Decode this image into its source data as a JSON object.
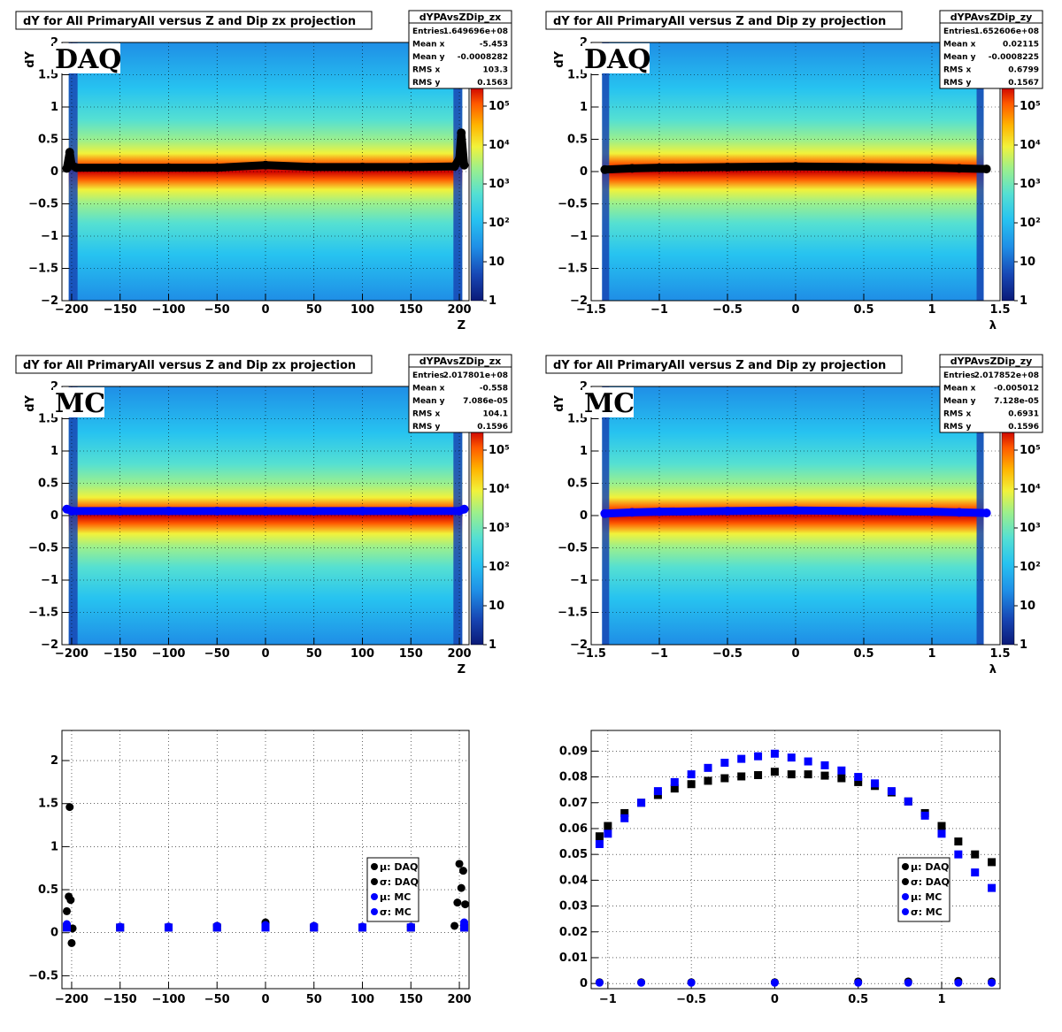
{
  "colors": {
    "daq": "#000000",
    "mc": "#0000ff",
    "palette": [
      "#0b1a78",
      "#1746b4",
      "#1f8ee6",
      "#27c3f0",
      "#55e0d2",
      "#9ef08a",
      "#f2f23a",
      "#ffb400",
      "#ff5a00",
      "#cc0000"
    ]
  },
  "panels": [
    {
      "id": "daq-zx",
      "tag": "DAQ",
      "title": "dY for All PrimaryAll versus Z and Dip zx projection",
      "stats": {
        "name": "dYPAvsZDip_zx",
        "rows": [
          {
            "label": "Entries",
            "value": "1.649696e+08"
          },
          {
            "label": "Mean x",
            "value": "-5.453"
          },
          {
            "label": "Mean y",
            "value": "-0.0008282"
          },
          {
            "label": "RMS x",
            "value": "103.3"
          },
          {
            "label": "RMS y",
            "value": "0.1563"
          }
        ]
      },
      "ylabel": "dY",
      "xlabel": "Z",
      "xticks": [
        "−200",
        "−150",
        "−100",
        "−50",
        "0",
        "50",
        "100",
        "150",
        "200"
      ],
      "yticks": [
        "−2",
        "−1.5",
        "−1",
        "−0.5",
        "0",
        "0.5",
        "1",
        "1.5",
        "2"
      ],
      "zticks": [
        "1",
        "10",
        "10²",
        "10³",
        "10⁴",
        "10⁵"
      ]
    },
    {
      "id": "daq-zy",
      "tag": "DAQ",
      "title": "dY for All PrimaryAll versus Z and Dip zy projection",
      "stats": {
        "name": "dYPAvsZDip_zy",
        "rows": [
          {
            "label": "Entries",
            "value": "1.652606e+08"
          },
          {
            "label": "Mean x",
            "value": "0.02115"
          },
          {
            "label": "Mean y",
            "value": "-0.0008225"
          },
          {
            "label": "RMS x",
            "value": "0.6799"
          },
          {
            "label": "RMS y",
            "value": "0.1567"
          }
        ]
      },
      "ylabel": "dY",
      "xlabel": "λ",
      "xticks": [
        "−1.5",
        "−1",
        "−0.5",
        "0",
        "0.5",
        "1",
        "1.5"
      ],
      "yticks": [
        "−2",
        "−1.5",
        "−1",
        "−0.5",
        "0",
        "0.5",
        "1",
        "1.5",
        "2"
      ],
      "zticks": [
        "1",
        "10",
        "10²",
        "10³",
        "10⁴",
        "10⁵"
      ]
    },
    {
      "id": "mc-zx",
      "tag": "MC",
      "title": "dY for All PrimaryAll versus Z and Dip zx projection",
      "stats": {
        "name": "dYPAvsZDip_zx",
        "rows": [
          {
            "label": "Entries",
            "value": "2.017801e+08"
          },
          {
            "label": "Mean x",
            "value": "-0.558"
          },
          {
            "label": "Mean y",
            "value": "7.086e-05"
          },
          {
            "label": "RMS x",
            "value": "104.1"
          },
          {
            "label": "RMS y",
            "value": "0.1596"
          }
        ]
      },
      "ylabel": "dY",
      "xlabel": "Z",
      "xticks": [
        "−200",
        "−150",
        "−100",
        "−50",
        "0",
        "50",
        "100",
        "150",
        "200"
      ],
      "yticks": [
        "−2",
        "−1.5",
        "−1",
        "−0.5",
        "0",
        "0.5",
        "1",
        "1.5",
        "2"
      ],
      "zticks": [
        "1",
        "10",
        "10²",
        "10³",
        "10⁴",
        "10⁵"
      ]
    },
    {
      "id": "mc-zy",
      "tag": "MC",
      "title": "dY for All PrimaryAll versus Z and Dip zy projection",
      "stats": {
        "name": "dYPAvsZDip_zy",
        "rows": [
          {
            "label": "Entries",
            "value": "2.017852e+08"
          },
          {
            "label": "Mean x",
            "value": "-0.005012"
          },
          {
            "label": "Mean y",
            "value": "7.128e-05"
          },
          {
            "label": "RMS x",
            "value": "0.6931"
          },
          {
            "label": "RMS y",
            "value": "0.1596"
          }
        ]
      },
      "ylabel": "dY",
      "xlabel": "λ",
      "xticks": [
        "−1.5",
        "−1",
        "−0.5",
        "0",
        "0.5",
        "1",
        "1.5"
      ],
      "yticks": [
        "−2",
        "−1.5",
        "−1",
        "−0.5",
        "0",
        "0.5",
        "1",
        "1.5",
        "2"
      ],
      "zticks": [
        "1",
        "10",
        "10²",
        "10³",
        "10⁴",
        "10⁵"
      ]
    }
  ],
  "chart_data": [
    {
      "type": "heatmap",
      "title": "dY for All PrimaryAll versus Z and Dip zx projection",
      "xlabel": "Z",
      "ylabel": "dY",
      "xlim": [
        -210,
        210
      ],
      "ylim": [
        -2,
        2
      ],
      "zscale": "log",
      "zlim": [
        1,
        100000
      ],
      "tag": "DAQ",
      "overlay_mean_profile": {
        "x": [
          -205,
          -202,
          -200,
          -195,
          -150,
          -100,
          -50,
          0,
          50,
          100,
          150,
          195,
          200,
          202,
          205
        ],
        "y": [
          0.05,
          0.3,
          0.1,
          0.06,
          0.06,
          0.06,
          0.06,
          0.1,
          0.07,
          0.07,
          0.07,
          0.08,
          0.2,
          0.6,
          0.1
        ]
      }
    },
    {
      "type": "heatmap",
      "title": "dY for All PrimaryAll versus Z and Dip zy projection",
      "xlabel": "λ",
      "ylabel": "dY",
      "xlim": [
        -1.5,
        1.5
      ],
      "ylim": [
        -2,
        2
      ],
      "zscale": "log",
      "zlim": [
        1,
        100000
      ],
      "tag": "DAQ",
      "overlay_mean_profile": {
        "x": [
          -1.4,
          -1.2,
          -1,
          -0.5,
          0,
          0.5,
          1,
          1.2,
          1.4
        ],
        "y": [
          0.03,
          0.05,
          0.06,
          0.07,
          0.08,
          0.07,
          0.06,
          0.05,
          0.04
        ]
      }
    },
    {
      "type": "heatmap",
      "title": "dY for All PrimaryAll versus Z and Dip zx projection",
      "xlabel": "Z",
      "ylabel": "dY",
      "xlim": [
        -210,
        210
      ],
      "ylim": [
        -2,
        2
      ],
      "zscale": "log",
      "zlim": [
        1,
        100000
      ],
      "tag": "MC",
      "overlay_mean_profile": {
        "x": [
          -205,
          -200,
          -150,
          -100,
          -50,
          0,
          50,
          100,
          150,
          200,
          205
        ],
        "y": [
          0.1,
          0.07,
          0.07,
          0.07,
          0.07,
          0.07,
          0.07,
          0.07,
          0.07,
          0.07,
          0.1
        ]
      }
    },
    {
      "type": "heatmap",
      "title": "dY for All PrimaryAll versus Z and Dip zy projection",
      "xlabel": "λ",
      "ylabel": "dY",
      "xlim": [
        -1.5,
        1.5
      ],
      "ylim": [
        -2,
        2
      ],
      "zscale": "log",
      "zlim": [
        1,
        100000
      ],
      "tag": "MC",
      "overlay_mean_profile": {
        "x": [
          -1.4,
          -1.2,
          -1,
          -0.5,
          0,
          0.5,
          1,
          1.2,
          1.4
        ],
        "y": [
          0.03,
          0.05,
          0.06,
          0.07,
          0.08,
          0.07,
          0.06,
          0.05,
          0.04
        ]
      }
    },
    {
      "type": "scatter",
      "xlim": [
        -210,
        210
      ],
      "ylim": [
        -0.65,
        2.35
      ],
      "xticks": [
        "−200",
        "−150",
        "−100",
        "−50",
        "0",
        "50",
        "100",
        "150",
        "200"
      ],
      "yticks": [
        "−0.5",
        "0",
        "0.5",
        "1",
        "1.5",
        "2"
      ],
      "legend": "middle-right",
      "grid": true,
      "series": [
        {
          "name": "μ: DAQ",
          "color": "#000000",
          "x": [
            -205,
            -203,
            -202,
            -201,
            -200,
            -199,
            -150,
            -100,
            -50,
            0,
            50,
            100,
            150,
            195,
            198,
            200,
            202,
            204,
            206
          ],
          "y": [
            0.25,
            0.42,
            1.46,
            0.38,
            -0.12,
            0.05,
            0.06,
            0.07,
            0.08,
            0.12,
            0.08,
            0.07,
            0.07,
            0.08,
            0.35,
            0.8,
            0.52,
            0.72,
            0.33
          ]
        },
        {
          "name": "σ: DAQ",
          "color": "#000000",
          "x": [
            -205,
            -150,
            -100,
            -50,
            0,
            50,
            100,
            150,
            205
          ],
          "y": [
            0.06,
            0.06,
            0.06,
            0.06,
            0.07,
            0.06,
            0.06,
            0.06,
            0.06
          ]
        },
        {
          "name": "μ: MC",
          "color": "#0000ff",
          "x": [
            -205,
            -150,
            -100,
            -50,
            0,
            50,
            100,
            150,
            205
          ],
          "y": [
            0.1,
            0.07,
            0.07,
            0.08,
            0.09,
            0.08,
            0.07,
            0.07,
            0.12
          ]
        },
        {
          "name": "σ: MC",
          "color": "#0000ff",
          "x": [
            -205,
            -150,
            -100,
            -50,
            0,
            50,
            100,
            150,
            205
          ],
          "y": [
            0.06,
            0.06,
            0.06,
            0.06,
            0.06,
            0.06,
            0.06,
            0.06,
            0.06
          ]
        }
      ]
    },
    {
      "type": "scatter",
      "xlim": [
        -1.1,
        1.35
      ],
      "ylim": [
        -0.002,
        0.098
      ],
      "xticks": [
        "−1",
        "−0.5",
        "0",
        "0.5",
        "1"
      ],
      "yticks": [
        "0",
        "0.01",
        "0.02",
        "0.03",
        "0.04",
        "0.05",
        "0.06",
        "0.07",
        "0.08",
        "0.09"
      ],
      "legend": "middle-right",
      "grid": true,
      "series": [
        {
          "name": "μ: DAQ",
          "color": "#000000",
          "x": [
            -1.05,
            -0.8,
            -0.5,
            0,
            0.5,
            0.8,
            1.1,
            1.3
          ],
          "y": [
            0.0005,
            0.0005,
            0.0005,
            0.0005,
            0.0008,
            0.0008,
            0.001,
            0.0008
          ]
        },
        {
          "name": "σ: DAQ",
          "color": "#000000",
          "x": [
            -1.05,
            -1.0,
            -0.9,
            -0.8,
            -0.7,
            -0.6,
            -0.5,
            -0.4,
            -0.3,
            -0.2,
            -0.1,
            0.0,
            0.1,
            0.2,
            0.3,
            0.4,
            0.5,
            0.6,
            0.7,
            0.8,
            0.9,
            1.0,
            1.1,
            1.2,
            1.3
          ],
          "y": [
            0.057,
            0.061,
            0.066,
            0.07,
            0.073,
            0.0755,
            0.0772,
            0.0785,
            0.0795,
            0.0802,
            0.0807,
            0.082,
            0.081,
            0.081,
            0.0805,
            0.0795,
            0.078,
            0.0765,
            0.074,
            0.0705,
            0.066,
            0.061,
            0.055,
            0.05,
            0.047
          ]
        },
        {
          "name": "μ: MC",
          "color": "#0000ff",
          "x": [
            -1.05,
            -0.8,
            -0.5,
            0,
            0.5,
            0.8,
            1.1,
            1.3
          ],
          "y": [
            0.0003,
            0.0003,
            0.0003,
            0.0003,
            0.0003,
            0.0003,
            0.0003,
            0.0003
          ]
        },
        {
          "name": "σ: MC",
          "color": "#0000ff",
          "x": [
            -1.05,
            -1.0,
            -0.9,
            -0.8,
            -0.7,
            -0.6,
            -0.5,
            -0.4,
            -0.3,
            -0.2,
            -0.1,
            0.0,
            0.1,
            0.2,
            0.3,
            0.4,
            0.5,
            0.6,
            0.7,
            0.8,
            0.9,
            1.0,
            1.1,
            1.2,
            1.3
          ],
          "y": [
            0.054,
            0.058,
            0.064,
            0.07,
            0.0745,
            0.078,
            0.081,
            0.0835,
            0.0855,
            0.087,
            0.088,
            0.089,
            0.0875,
            0.086,
            0.0845,
            0.0825,
            0.08,
            0.0775,
            0.0745,
            0.0705,
            0.065,
            0.058,
            0.05,
            0.043,
            0.037
          ]
        }
      ]
    }
  ]
}
